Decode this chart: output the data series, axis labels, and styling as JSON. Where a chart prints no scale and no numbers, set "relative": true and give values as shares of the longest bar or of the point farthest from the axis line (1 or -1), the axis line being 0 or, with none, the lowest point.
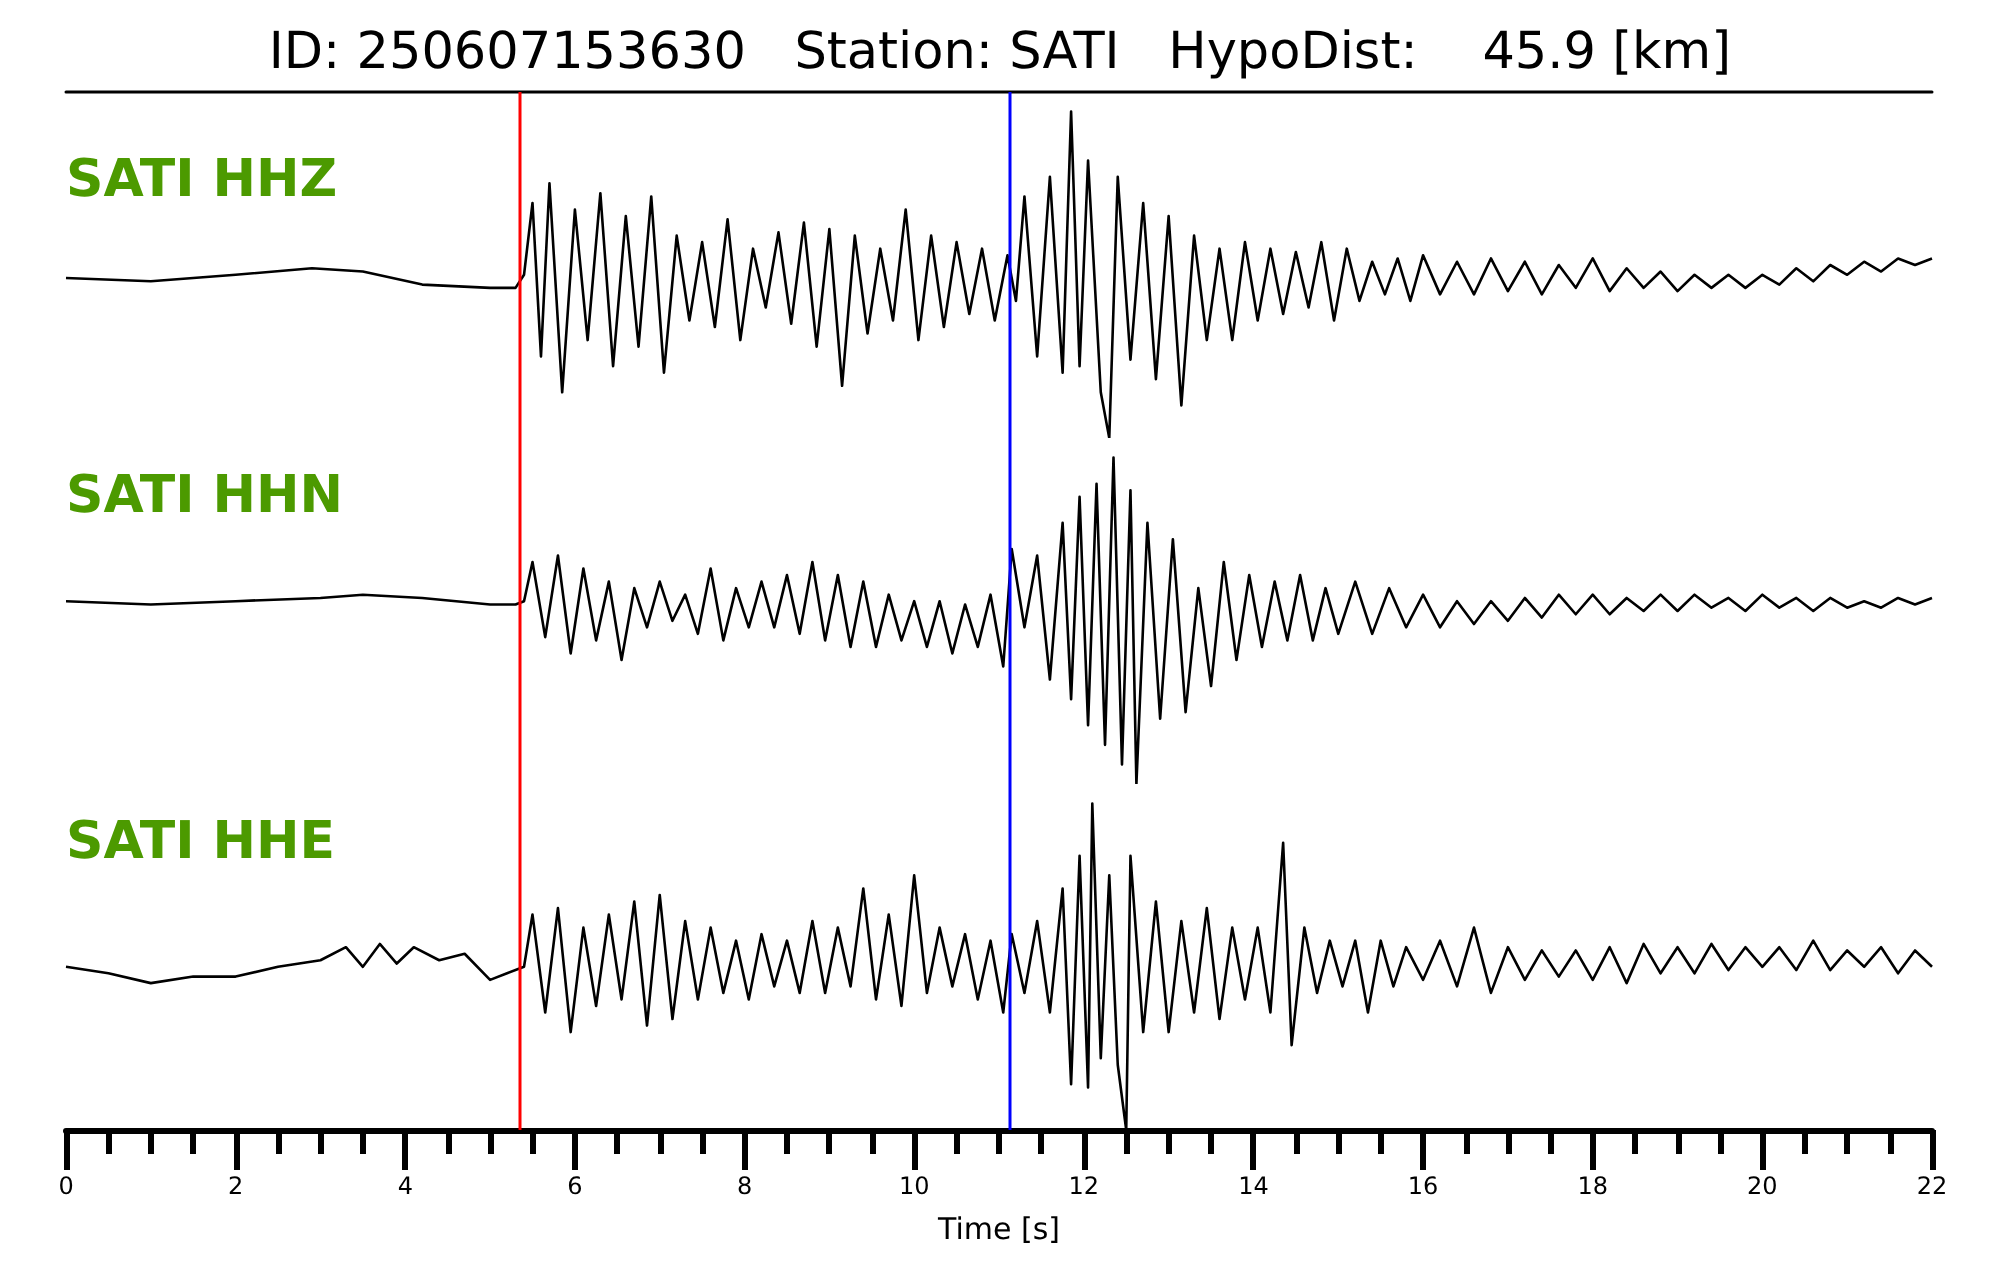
{
  "chart_data": [
    {
      "type": "line",
      "title": "ID: 250607153630   Station: SATI   HypoDist:    45.9 [km]",
      "relative": true,
      "annotations": [
        "SATI HHZ"
      ],
      "xlim": [
        0,
        22
      ],
      "tick_labels": false,
      "line_style": "solid",
      "ref_lines": [
        {
          "axis": "x",
          "value": 5.35,
          "color": "#ff0000"
        },
        {
          "axis": "x",
          "value": 11.13,
          "color": "#0000ff"
        }
      ],
      "x": [
        0,
        1,
        2,
        2.9,
        3.5,
        4.2,
        5,
        5.3,
        5.4,
        5.5,
        5.6,
        5.7,
        5.85,
        6.0,
        6.15,
        6.3,
        6.45,
        6.6,
        6.75,
        6.9,
        7.05,
        7.2,
        7.35,
        7.5,
        7.65,
        7.8,
        7.95,
        8.1,
        8.25,
        8.4,
        8.55,
        8.7,
        8.85,
        9.0,
        9.15,
        9.3,
        9.45,
        9.6,
        9.75,
        9.9,
        10.05,
        10.2,
        10.35,
        10.5,
        10.65,
        10.8,
        10.95,
        11.1,
        11.2,
        11.3,
        11.45,
        11.6,
        11.75,
        11.85,
        11.95,
        12.05,
        12.2,
        12.3,
        12.4,
        12.55,
        12.7,
        12.85,
        13.0,
        13.15,
        13.3,
        13.45,
        13.6,
        13.75,
        13.9,
        14.05,
        14.2,
        14.35,
        14.5,
        14.65,
        14.8,
        14.95,
        15.1,
        15.25,
        15.4,
        15.55,
        15.7,
        15.85,
        16.0,
        16.2,
        16.4,
        16.6,
        16.8,
        17.0,
        17.2,
        17.4,
        17.6,
        17.8,
        18.0,
        18.2,
        18.4,
        18.6,
        18.8,
        19.0,
        19.2,
        19.4,
        19.6,
        19.8,
        20.0,
        20.2,
        20.4,
        20.6,
        20.8,
        21.0,
        21.2,
        21.4,
        21.6,
        21.8,
        22.0
      ],
      "series": [
        {
          "color": "#000000",
          "values": [
            0.49,
            0.48,
            0.5,
            0.52,
            0.51,
            0.47,
            0.46,
            0.46,
            0.5,
            0.72,
            0.25,
            0.78,
            0.14,
            0.7,
            0.3,
            0.75,
            0.22,
            0.68,
            0.28,
            0.74,
            0.2,
            0.62,
            0.36,
            0.6,
            0.34,
            0.67,
            0.3,
            0.58,
            0.4,
            0.63,
            0.35,
            0.66,
            0.28,
            0.64,
            0.16,
            0.62,
            0.32,
            0.58,
            0.36,
            0.7,
            0.3,
            0.62,
            0.34,
            0.6,
            0.38,
            0.58,
            0.36,
            0.56,
            0.42,
            0.74,
            0.25,
            0.8,
            0.2,
            1.0,
            0.22,
            0.85,
            0.14,
            0.0,
            0.8,
            0.24,
            0.72,
            0.18,
            0.68,
            0.1,
            0.62,
            0.3,
            0.58,
            0.3,
            0.6,
            0.36,
            0.58,
            0.38,
            0.57,
            0.4,
            0.6,
            0.36,
            0.58,
            0.42,
            0.54,
            0.44,
            0.55,
            0.42,
            0.56,
            0.44,
            0.54,
            0.44,
            0.55,
            0.45,
            0.54,
            0.44,
            0.53,
            0.46,
            0.55,
            0.45,
            0.52,
            0.46,
            0.51,
            0.45,
            0.5,
            0.46,
            0.5,
            0.46,
            0.5,
            0.47,
            0.52,
            0.48,
            0.53,
            0.5,
            0.54,
            0.51,
            0.55,
            0.53,
            0.55
          ]
        }
      ]
    },
    {
      "type": "line",
      "relative": true,
      "annotations": [
        "SATI HHN"
      ],
      "xlim": [
        0,
        22
      ],
      "tick_labels": false,
      "line_style": "solid",
      "ref_lines": [
        {
          "axis": "x",
          "value": 5.35,
          "color": "#ff0000"
        },
        {
          "axis": "x",
          "value": 11.13,
          "color": "#0000ff"
        }
      ],
      "x": [
        0,
        1,
        2,
        3,
        3.5,
        4.2,
        5,
        5.3,
        5.4,
        5.5,
        5.65,
        5.8,
        5.95,
        6.1,
        6.25,
        6.4,
        6.55,
        6.7,
        6.85,
        7.0,
        7.15,
        7.3,
        7.45,
        7.6,
        7.75,
        7.9,
        8.05,
        8.2,
        8.35,
        8.5,
        8.65,
        8.8,
        8.95,
        9.1,
        9.25,
        9.4,
        9.55,
        9.7,
        9.85,
        10.0,
        10.15,
        10.3,
        10.45,
        10.6,
        10.75,
        10.9,
        11.05,
        11.15,
        11.3,
        11.45,
        11.6,
        11.75,
        11.85,
        11.95,
        12.05,
        12.15,
        12.25,
        12.35,
        12.45,
        12.55,
        12.62,
        12.75,
        12.9,
        13.05,
        13.2,
        13.35,
        13.5,
        13.65,
        13.8,
        13.95,
        14.1,
        14.25,
        14.4,
        14.55,
        14.7,
        14.85,
        15.0,
        15.2,
        15.4,
        15.6,
        15.8,
        16.0,
        16.2,
        16.4,
        16.6,
        16.8,
        17.0,
        17.2,
        17.4,
        17.6,
        17.8,
        18.0,
        18.2,
        18.4,
        18.6,
        18.8,
        19.0,
        19.2,
        19.4,
        19.6,
        19.8,
        20.0,
        20.2,
        20.4,
        20.6,
        20.8,
        21.0,
        21.2,
        21.4,
        21.6,
        21.8,
        22.0
      ],
      "series": [
        {
          "color": "#000000",
          "values": [
            0.56,
            0.55,
            0.56,
            0.57,
            0.58,
            0.57,
            0.55,
            0.55,
            0.56,
            0.68,
            0.45,
            0.7,
            0.4,
            0.66,
            0.44,
            0.62,
            0.38,
            0.6,
            0.48,
            0.62,
            0.5,
            0.58,
            0.46,
            0.66,
            0.44,
            0.6,
            0.48,
            0.62,
            0.48,
            0.64,
            0.46,
            0.68,
            0.44,
            0.64,
            0.42,
            0.62,
            0.42,
            0.58,
            0.44,
            0.56,
            0.42,
            0.56,
            0.4,
            0.55,
            0.42,
            0.58,
            0.36,
            0.72,
            0.48,
            0.7,
            0.32,
            0.8,
            0.26,
            0.88,
            0.18,
            0.92,
            0.12,
            1.0,
            0.06,
            0.9,
            0.0,
            0.8,
            0.2,
            0.75,
            0.22,
            0.6,
            0.3,
            0.68,
            0.38,
            0.64,
            0.42,
            0.62,
            0.44,
            0.64,
            0.44,
            0.6,
            0.46,
            0.62,
            0.46,
            0.6,
            0.48,
            0.58,
            0.48,
            0.56,
            0.49,
            0.56,
            0.5,
            0.57,
            0.51,
            0.58,
            0.52,
            0.58,
            0.52,
            0.57,
            0.53,
            0.58,
            0.53,
            0.58,
            0.54,
            0.57,
            0.53,
            0.58,
            0.54,
            0.57,
            0.53,
            0.57,
            0.54,
            0.56,
            0.54,
            0.57,
            0.55,
            0.57
          ]
        }
      ]
    },
    {
      "type": "line",
      "relative": true,
      "annotations": [
        "SATI HHE"
      ],
      "xlim": [
        0,
        22
      ],
      "tick_labels": "x",
      "line_style": "solid",
      "xlabel": "Time [s]",
      "xticks": [
        0,
        {
          "value": 0.5,
          "label": null
        },
        {
          "value": 1,
          "label": null
        },
        {
          "value": 1.5,
          "label": null
        },
        2,
        {
          "value": 2.5,
          "label": null
        },
        {
          "value": 3,
          "label": null
        },
        {
          "value": 3.5,
          "label": null
        },
        4,
        {
          "value": 4.5,
          "label": null
        },
        {
          "value": 5,
          "label": null
        },
        {
          "value": 5.5,
          "label": null
        },
        6,
        {
          "value": 6.5,
          "label": null
        },
        {
          "value": 7,
          "label": null
        },
        {
          "value": 7.5,
          "label": null
        },
        8,
        {
          "value": 8.5,
          "label": null
        },
        {
          "value": 9,
          "label": null
        },
        {
          "value": 9.5,
          "label": null
        },
        10,
        {
          "value": 10.5,
          "label": null
        },
        {
          "value": 11,
          "label": null
        },
        {
          "value": 11.5,
          "label": null
        },
        12,
        {
          "value": 12.5,
          "label": null
        },
        {
          "value": 13,
          "label": null
        },
        {
          "value": 13.5,
          "label": null
        },
        14,
        {
          "value": 14.5,
          "label": null
        },
        {
          "value": 15,
          "label": null
        },
        {
          "value": 15.5,
          "label": null
        },
        16,
        {
          "value": 16.5,
          "label": null
        },
        {
          "value": 17,
          "label": null
        },
        {
          "value": 17.5,
          "label": null
        },
        18,
        {
          "value": 18.5,
          "label": null
        },
        {
          "value": 19,
          "label": null
        },
        {
          "value": 19.5,
          "label": null
        },
        20,
        {
          "value": 20.5,
          "label": null
        },
        {
          "value": 21,
          "label": null
        },
        {
          "value": 21.5,
          "label": null
        },
        22
      ],
      "ref_lines": [
        {
          "axis": "x",
          "value": 5.35,
          "color": "#ff0000"
        },
        {
          "axis": "x",
          "value": 11.13,
          "color": "#0000ff"
        }
      ],
      "x": [
        0,
        0.5,
        1.0,
        1.5,
        2.0,
        2.5,
        3.0,
        3.3,
        3.5,
        3.7,
        3.9,
        4.1,
        4.4,
        4.7,
        5.0,
        5.2,
        5.4,
        5.5,
        5.65,
        5.8,
        5.95,
        6.1,
        6.25,
        6.4,
        6.55,
        6.7,
        6.85,
        7.0,
        7.15,
        7.3,
        7.45,
        7.6,
        7.75,
        7.9,
        8.05,
        8.2,
        8.35,
        8.5,
        8.65,
        8.8,
        8.95,
        9.1,
        9.25,
        9.4,
        9.55,
        9.7,
        9.85,
        10.0,
        10.15,
        10.3,
        10.45,
        10.6,
        10.75,
        10.9,
        11.05,
        11.15,
        11.3,
        11.45,
        11.6,
        11.75,
        11.85,
        11.95,
        12.05,
        12.1,
        12.2,
        12.3,
        12.4,
        12.5,
        12.55,
        12.7,
        12.85,
        13.0,
        13.15,
        13.3,
        13.45,
        13.6,
        13.75,
        13.9,
        14.05,
        14.2,
        14.35,
        14.45,
        14.6,
        14.75,
        14.9,
        15.05,
        15.2,
        15.35,
        15.5,
        15.65,
        15.8,
        16.0,
        16.2,
        16.4,
        16.6,
        16.8,
        17.0,
        17.2,
        17.4,
        17.6,
        17.8,
        18.0,
        18.2,
        18.4,
        18.6,
        18.8,
        19.0,
        19.2,
        19.4,
        19.6,
        19.8,
        20.0,
        20.2,
        20.4,
        20.6,
        20.8,
        21.0,
        21.2,
        21.4,
        21.6,
        21.8,
        22.0
      ],
      "series": [
        {
          "color": "#000000",
          "values": [
            0.5,
            0.48,
            0.45,
            0.47,
            0.47,
            0.5,
            0.52,
            0.56,
            0.5,
            0.57,
            0.51,
            0.56,
            0.52,
            0.54,
            0.46,
            0.48,
            0.5,
            0.66,
            0.36,
            0.68,
            0.3,
            0.62,
            0.38,
            0.66,
            0.4,
            0.7,
            0.32,
            0.72,
            0.34,
            0.64,
            0.4,
            0.62,
            0.42,
            0.58,
            0.4,
            0.6,
            0.44,
            0.58,
            0.42,
            0.64,
            0.42,
            0.62,
            0.44,
            0.74,
            0.4,
            0.66,
            0.38,
            0.78,
            0.42,
            0.62,
            0.44,
            0.6,
            0.4,
            0.58,
            0.36,
            0.6,
            0.42,
            0.64,
            0.36,
            0.74,
            0.14,
            0.84,
            0.13,
            1.0,
            0.22,
            0.78,
            0.2,
            0.0,
            0.84,
            0.3,
            0.7,
            0.3,
            0.64,
            0.36,
            0.68,
            0.34,
            0.62,
            0.4,
            0.62,
            0.36,
            0.88,
            0.26,
            0.62,
            0.42,
            0.58,
            0.44,
            0.58,
            0.36,
            0.58,
            0.44,
            0.56,
            0.46,
            0.58,
            0.44,
            0.62,
            0.42,
            0.56,
            0.46,
            0.55,
            0.47,
            0.55,
            0.46,
            0.56,
            0.45,
            0.57,
            0.48,
            0.56,
            0.48,
            0.57,
            0.49,
            0.56,
            0.5,
            0.56,
            0.49,
            0.58,
            0.49,
            0.55,
            0.5,
            0.56,
            0.48,
            0.55,
            0.5
          ]
        }
      ]
    }
  ]
}
